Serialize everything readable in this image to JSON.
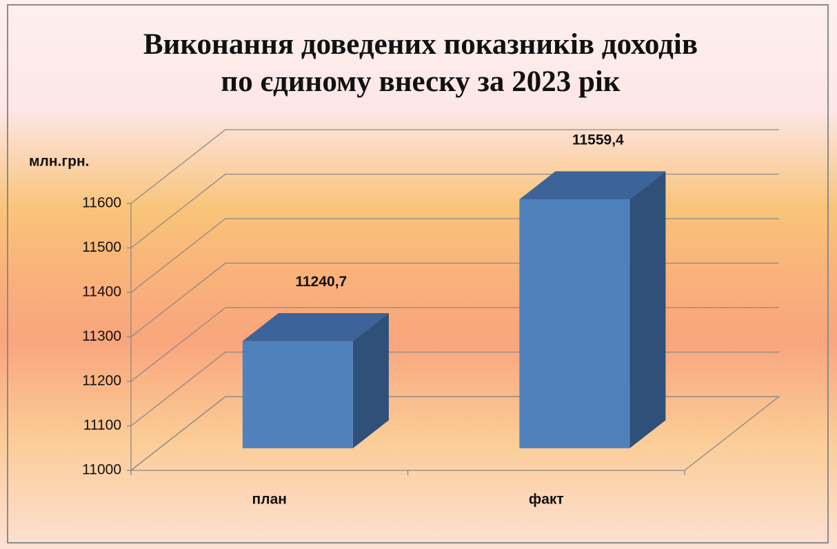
{
  "chart_data": {
    "type": "bar3d",
    "title": "Виконання доведених показників доходів по єдиному внеску за 2023 рік",
    "y_label": "млн.грн.",
    "categories": [
      "план",
      "факт"
    ],
    "values": [
      11240.7,
      11559.4
    ],
    "value_labels": [
      "11240,7",
      "11559,4"
    ],
    "color": "#4f81bd",
    "ylim": [
      11000,
      11600
    ],
    "yticks": [
      11000,
      11100,
      11200,
      11300,
      11400,
      11500,
      11600
    ],
    "grid": true
  }
}
